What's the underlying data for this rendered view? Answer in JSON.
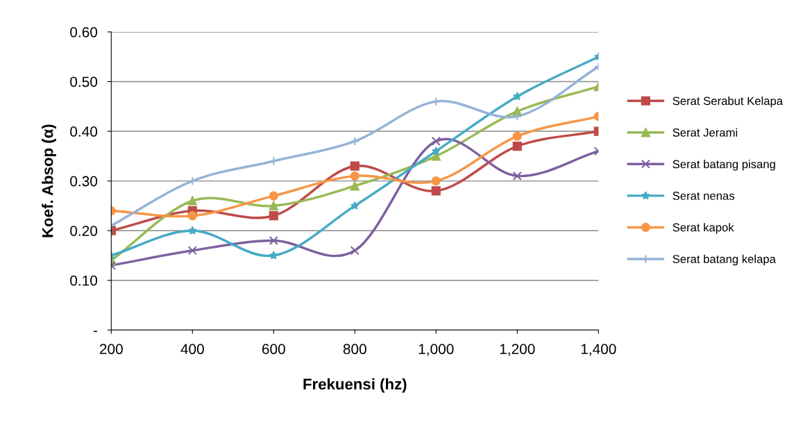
{
  "chart_data": {
    "type": "line",
    "xlabel": "Frekuensi (hz)",
    "ylabel": "Koef. Absop (α)",
    "x": [
      200,
      400,
      600,
      800,
      1000,
      1200,
      1400
    ],
    "xlim": [
      200,
      1400
    ],
    "xticks": [
      {
        "value": 200,
        "label": "200"
      },
      {
        "value": 400,
        "label": "400"
      },
      {
        "value": 600,
        "label": "600"
      },
      {
        "value": 800,
        "label": "800"
      },
      {
        "value": 1000,
        "label": "1,000"
      },
      {
        "value": 1200,
        "label": "1,200"
      },
      {
        "value": 1400,
        "label": "1,400"
      }
    ],
    "ylim": [
      0,
      0.6
    ],
    "yticks": [
      {
        "value": 0,
        "label": "-"
      },
      {
        "value": 0.1,
        "label": "0.10"
      },
      {
        "value": 0.2,
        "label": "0.20"
      },
      {
        "value": 0.3,
        "label": "0.30"
      },
      {
        "value": 0.4,
        "label": "0.40"
      },
      {
        "value": 0.5,
        "label": "0.50"
      },
      {
        "value": 0.6,
        "label": "0.60"
      }
    ],
    "grid": "y",
    "legend": "right",
    "series": [
      {
        "name": "Serat Serabut Kelapa",
        "color": "#be4b48",
        "marker": "square",
        "values": [
          0.2,
          0.24,
          0.23,
          0.33,
          0.28,
          0.37,
          0.4
        ]
      },
      {
        "name": "Serat Jerami",
        "color": "#98b954",
        "marker": "triangle",
        "values": [
          0.14,
          0.26,
          0.25,
          0.29,
          0.35,
          0.44,
          0.49
        ]
      },
      {
        "name": "Serat batang pisang",
        "color": "#7d60a0",
        "marker": "cross",
        "values": [
          0.13,
          0.16,
          0.18,
          0.16,
          0.38,
          0.31,
          0.36
        ]
      },
      {
        "name": "Serat nenas",
        "color": "#46aac5",
        "marker": "star",
        "values": [
          0.15,
          0.2,
          0.15,
          0.25,
          0.36,
          0.47,
          0.55
        ]
      },
      {
        "name": "Serat kapok",
        "color": "#f79646",
        "marker": "circle",
        "values": [
          0.24,
          0.23,
          0.27,
          0.31,
          0.3,
          0.39,
          0.43
        ]
      },
      {
        "name": "Serat batang kelapa",
        "color": "#95b3d7",
        "marker": "plus",
        "values": [
          0.21,
          0.3,
          0.34,
          0.38,
          0.46,
          0.43,
          0.53
        ]
      }
    ]
  }
}
